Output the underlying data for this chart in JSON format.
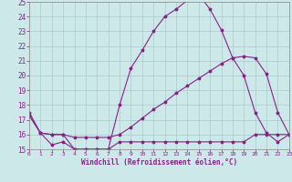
{
  "bg_color": "#cce8e8",
  "line_color": "#882288",
  "grid_color": "#aacccc",
  "xlabel": "Windchill (Refroidissement éolien,°C)",
  "xmin": 0,
  "xmax": 23,
  "ymin": 15,
  "ymax": 25,
  "yticks": [
    15,
    16,
    17,
    18,
    19,
    20,
    21,
    22,
    23,
    24,
    25
  ],
  "xticks": [
    0,
    1,
    2,
    3,
    4,
    5,
    6,
    7,
    8,
    9,
    10,
    11,
    12,
    13,
    14,
    15,
    16,
    17,
    18,
    19,
    20,
    21,
    22,
    23
  ],
  "line1_x": [
    0,
    1,
    2,
    3,
    4,
    5,
    6,
    7,
    8,
    9,
    10,
    11,
    12,
    13,
    14,
    15,
    16,
    17,
    18,
    19,
    20,
    21,
    22,
    23
  ],
  "line1_y": [
    17.5,
    16.1,
    16.0,
    16.0,
    15.0,
    15.0,
    15.0,
    15.0,
    18.0,
    20.5,
    21.7,
    23.0,
    24.0,
    24.5,
    25.1,
    25.5,
    24.5,
    23.1,
    21.2,
    20.0,
    17.5,
    16.1,
    15.5,
    16.0
  ],
  "line2_x": [
    0,
    1,
    2,
    3,
    4,
    5,
    6,
    7,
    8,
    9,
    10,
    11,
    12,
    13,
    14,
    15,
    16,
    17,
    18,
    19,
    20,
    21,
    22,
    23
  ],
  "line2_y": [
    17.3,
    16.1,
    16.0,
    16.0,
    15.8,
    15.8,
    15.8,
    15.8,
    16.0,
    16.5,
    17.1,
    17.7,
    18.2,
    18.8,
    19.3,
    19.8,
    20.3,
    20.8,
    21.2,
    21.3,
    21.2,
    20.1,
    17.5,
    16.0
  ],
  "line3_x": [
    0,
    1,
    2,
    3,
    4,
    5,
    6,
    7,
    8,
    9,
    10,
    11,
    12,
    13,
    14,
    15,
    16,
    17,
    18,
    19,
    20,
    21,
    22,
    23
  ],
  "line3_y": [
    17.3,
    16.1,
    15.3,
    15.5,
    15.0,
    15.0,
    15.0,
    15.0,
    15.5,
    15.5,
    15.5,
    15.5,
    15.5,
    15.5,
    15.5,
    15.5,
    15.5,
    15.5,
    15.5,
    15.5,
    16.0,
    16.0,
    16.0,
    16.0
  ]
}
